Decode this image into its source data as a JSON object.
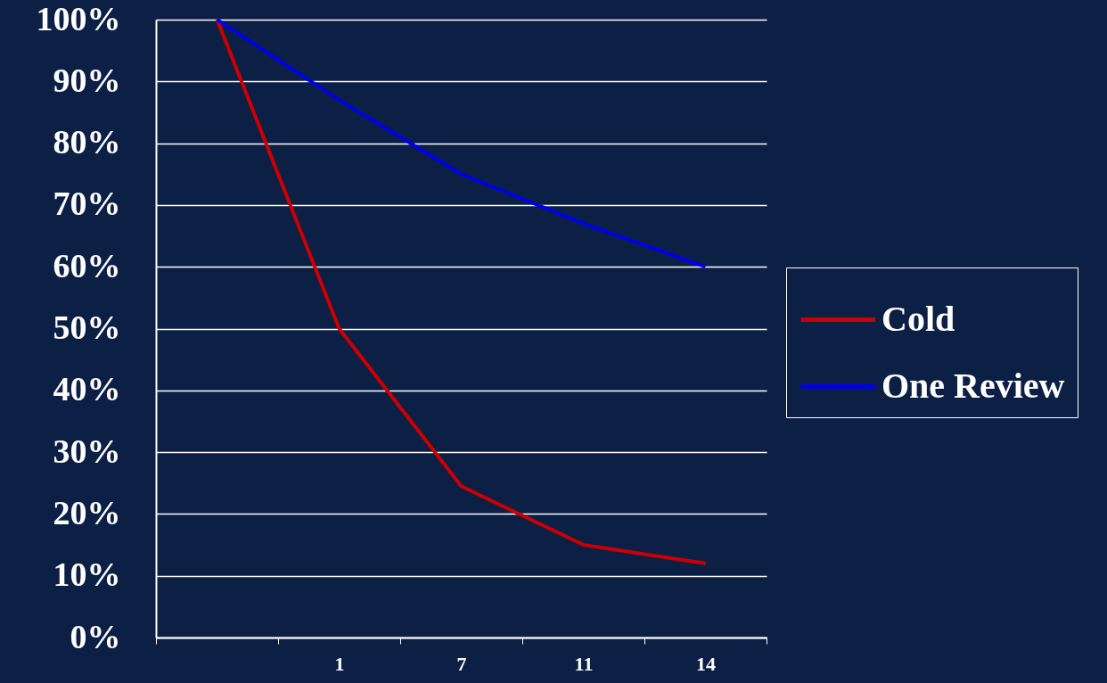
{
  "chart_data": {
    "type": "line",
    "categories": [
      null,
      "1",
      "7",
      "11",
      "14"
    ],
    "series": [
      {
        "name": "Cold",
        "color": "#cc0000",
        "values": [
          100,
          50,
          24.5,
          15,
          12
        ]
      },
      {
        "name": "One Review",
        "color": "#0000e6",
        "values": [
          100,
          87,
          75,
          67,
          60
        ]
      }
    ],
    "ylim": [
      0,
      100
    ],
    "yticks": [
      {
        "value": 0,
        "label": "0%"
      },
      {
        "value": 10,
        "label": "10%"
      },
      {
        "value": 20,
        "label": "20%"
      },
      {
        "value": 30,
        "label": "30%"
      },
      {
        "value": 40,
        "label": "40%"
      },
      {
        "value": 50,
        "label": "50%"
      },
      {
        "value": 60,
        "label": "60%"
      },
      {
        "value": 70,
        "label": "70%"
      },
      {
        "value": 80,
        "label": "80%"
      },
      {
        "value": 90,
        "label": "90%"
      },
      {
        "value": 100,
        "label": "100%"
      }
    ],
    "grid": "y",
    "legend": "right"
  }
}
